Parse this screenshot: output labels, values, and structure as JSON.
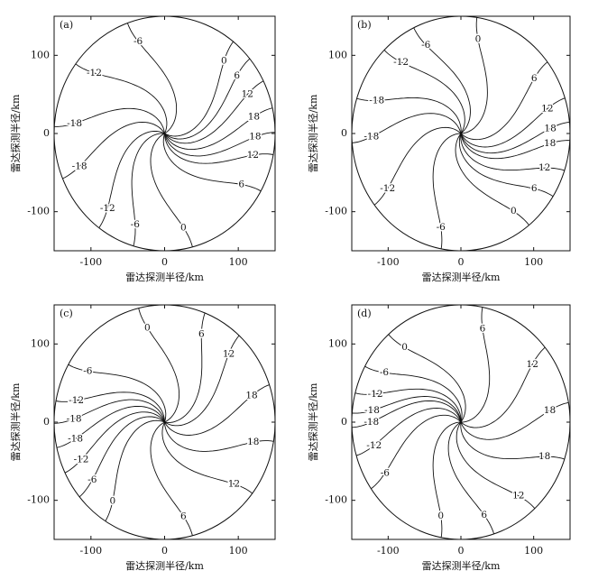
{
  "chart_data": [
    {
      "type": "contour",
      "panel": "(a)",
      "xlabel": "雷达探测半径/km",
      "ylabel": "雷达探测半径/km",
      "xlim": [
        -150,
        150
      ],
      "ylim": [
        -150,
        150
      ],
      "xticks": [
        -100,
        0,
        100
      ],
      "yticks": [
        -100,
        0,
        100
      ],
      "levels": [
        -18,
        -12,
        -6,
        0,
        6,
        12,
        18
      ]
    },
    {
      "type": "contour",
      "panel": "(b)",
      "xlabel": "雷达探测半径/km",
      "ylabel": "雷达探测半径/km",
      "xlim": [
        -150,
        150
      ],
      "ylim": [
        -150,
        150
      ],
      "xticks": [
        -100,
        0,
        100
      ],
      "yticks": [
        -100,
        0,
        100
      ],
      "levels": [
        -18,
        -12,
        -6,
        0,
        6,
        12,
        18
      ]
    },
    {
      "type": "contour",
      "panel": "(c)",
      "xlabel": "雷达探测半径/km",
      "ylabel": "雷达探测半径/km",
      "xlim": [
        -150,
        150
      ],
      "ylim": [
        -150,
        150
      ],
      "xticks": [
        -100,
        0,
        100
      ],
      "yticks": [
        -100,
        0,
        100
      ],
      "levels": [
        -18,
        -12,
        -6,
        0,
        6,
        12,
        18
      ]
    },
    {
      "type": "contour",
      "panel": "(d)",
      "xlabel": "雷达探测半径/km",
      "ylabel": "雷达探测半径/km",
      "xlim": [
        -150,
        150
      ],
      "ylim": [
        -150,
        150
      ],
      "xticks": [
        -100,
        0,
        100
      ],
      "yticks": [
        -100,
        0,
        100
      ],
      "levels": [
        -18,
        -12,
        -6,
        0,
        6,
        12,
        18
      ]
    }
  ]
}
